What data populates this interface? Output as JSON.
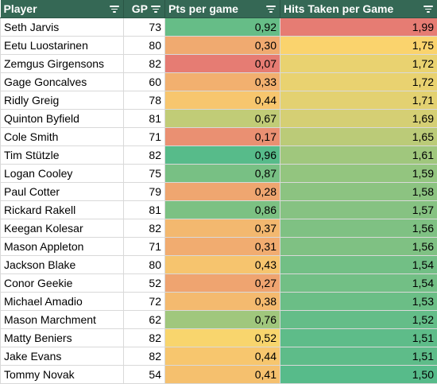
{
  "headers": {
    "player": "Player",
    "gp": "GP",
    "pts": "Pts per game",
    "hits": "Hits Taken per Game",
    "filter_icon": "filter-icon"
  },
  "colors": {
    "header_bg": "#356855",
    "scale_low": "#e67c73",
    "scale_mid": "#fad56d",
    "scale_high": "#57bb8a"
  },
  "rows": [
    {
      "player": "Seth Jarvis",
      "gp": "73",
      "pts": "0,92",
      "hits": "1,99"
    },
    {
      "player": "Eetu Luostarinen",
      "gp": "80",
      "pts": "0,30",
      "hits": "1,75"
    },
    {
      "player": "Zemgus Girgensons",
      "gp": "82",
      "pts": "0,07",
      "hits": "1,72"
    },
    {
      "player": "Gage Goncalves",
      "gp": "60",
      "pts": "0,33",
      "hits": "1,72"
    },
    {
      "player": "Ridly Greig",
      "gp": "78",
      "pts": "0,44",
      "hits": "1,71"
    },
    {
      "player": "Quinton Byfield",
      "gp": "81",
      "pts": "0,67",
      "hits": "1,69"
    },
    {
      "player": "Cole Smith",
      "gp": "71",
      "pts": "0,17",
      "hits": "1,65"
    },
    {
      "player": "Tim Stützle",
      "gp": "82",
      "pts": "0,96",
      "hits": "1,61"
    },
    {
      "player": "Logan Cooley",
      "gp": "75",
      "pts": "0,87",
      "hits": "1,59"
    },
    {
      "player": "Paul Cotter",
      "gp": "79",
      "pts": "0,28",
      "hits": "1,58"
    },
    {
      "player": "Rickard Rakell",
      "gp": "81",
      "pts": "0,86",
      "hits": "1,57"
    },
    {
      "player": "Keegan Kolesar",
      "gp": "82",
      "pts": "0,37",
      "hits": "1,56"
    },
    {
      "player": "Mason Appleton",
      "gp": "71",
      "pts": "0,31",
      "hits": "1,56"
    },
    {
      "player": "Jackson Blake",
      "gp": "80",
      "pts": "0,43",
      "hits": "1,54"
    },
    {
      "player": "Conor Geekie",
      "gp": "52",
      "pts": "0,27",
      "hits": "1,54"
    },
    {
      "player": "Michael Amadio",
      "gp": "72",
      "pts": "0,38",
      "hits": "1,53"
    },
    {
      "player": "Mason Marchment",
      "gp": "62",
      "pts": "0,76",
      "hits": "1,52"
    },
    {
      "player": "Matty Beniers",
      "gp": "82",
      "pts": "0,52",
      "hits": "1,51"
    },
    {
      "player": "Jake Evans",
      "gp": "82",
      "pts": "0,44",
      "hits": "1,51"
    },
    {
      "player": "Tommy Novak",
      "gp": "54",
      "pts": "0,41",
      "hits": "1,50"
    }
  ]
}
